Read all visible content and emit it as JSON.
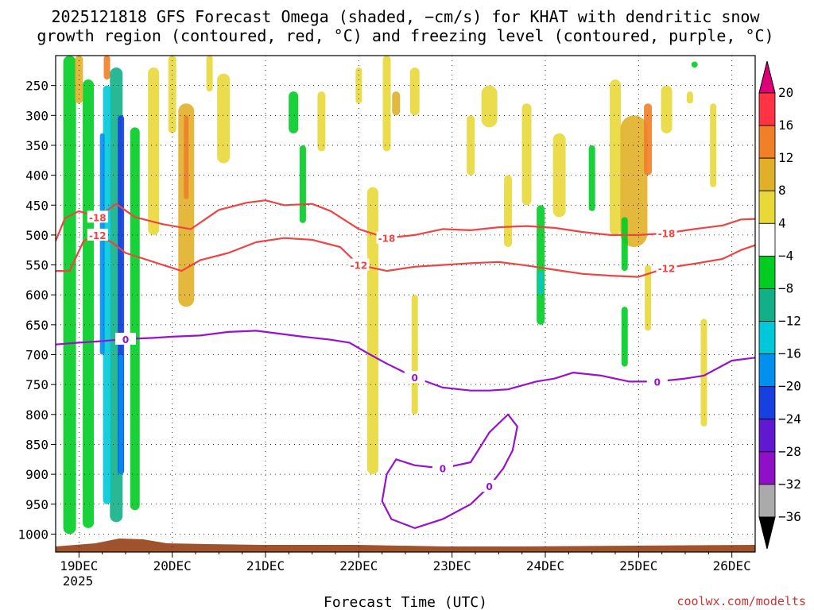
{
  "chart_data": {
    "type": "heatmap",
    "title_lines": [
      "2025121818 GFS Forecast Omega (shaded, −cm/s) for KHAT with dendritic snow",
      "growth region (contoured, red, °C) and freezing level (contoured, purple, °C)"
    ],
    "xlabel": "Forecast Time (UTC)",
    "ylabel": "",
    "credit": "coolwx.com/modelts",
    "x_ticks": [
      "19DEC",
      "20DEC",
      "21DEC",
      "22DEC",
      "23DEC",
      "24DEC",
      "25DEC",
      "26DEC"
    ],
    "x_year": "2025",
    "y_ticks": [
      "250",
      "300",
      "350",
      "400",
      "450",
      "500",
      "550",
      "600",
      "650",
      "700",
      "750",
      "800",
      "850",
      "900",
      "950",
      "1000"
    ],
    "y_range_hpa": [
      200,
      1030
    ],
    "x_range_days": [
      18.75,
      26.25
    ],
    "colorbar": {
      "labels": [
        "20",
        "16",
        "12",
        "8",
        "4",
        "−4",
        "−8",
        "−12",
        "−16",
        "−20",
        "−24",
        "−28",
        "−32",
        "−36"
      ],
      "colors": [
        "#ff3344",
        "#f08028",
        "#e0b028",
        "#e8d838",
        "#ffffff",
        "#00cc22",
        "#11b088",
        "#00c8d8",
        "#0090f0",
        "#1840e0",
        "#6018d0",
        "#9010c8",
        "#aaaaaa"
      ],
      "top_color": "#dd0077",
      "bottom_color": "#000000"
    },
    "series": [
      {
        "name": "-18 °C",
        "color": "#ee4444",
        "label": "-18",
        "x": [
          18.75,
          18.85,
          19.0,
          19.2,
          19.4,
          19.6,
          19.9,
          20.2,
          20.5,
          20.8,
          21.0,
          21.2,
          21.5,
          21.7,
          22.0,
          22.3,
          22.6,
          22.9,
          23.2,
          23.5,
          23.8,
          24.1,
          24.4,
          24.7,
          25.0,
          25.3,
          25.6,
          25.9,
          26.1,
          26.25
        ],
        "y": [
          510,
          472,
          460,
          470,
          448,
          470,
          482,
          490,
          458,
          446,
          442,
          450,
          448,
          460,
          490,
          505,
          500,
          490,
          492,
          487,
          485,
          488,
          495,
          500,
          500,
          497,
          490,
          484,
          474,
          473
        ]
      },
      {
        "name": "-12 °C",
        "color": "#ee4444",
        "label": "-12",
        "x": [
          18.75,
          18.9,
          19.05,
          19.2,
          19.35,
          19.5,
          19.7,
          19.9,
          20.1,
          20.3,
          20.6,
          20.9,
          21.2,
          21.5,
          21.8,
          22.0,
          22.3,
          22.6,
          22.9,
          23.2,
          23.5,
          23.8,
          24.1,
          24.4,
          24.7,
          25.0,
          25.3,
          25.6,
          25.9,
          26.1,
          26.25
        ],
        "y": [
          560,
          560,
          510,
          500,
          512,
          530,
          540,
          550,
          560,
          542,
          530,
          512,
          505,
          508,
          520,
          550,
          560,
          553,
          550,
          547,
          545,
          551,
          558,
          565,
          568,
          570,
          555,
          548,
          540,
          525,
          517
        ]
      },
      {
        "name": "0 °C freezing level",
        "color": "#9911cc",
        "label": "0",
        "x": [
          18.75,
          19.0,
          19.2,
          19.5,
          19.8,
          20.0,
          20.3,
          20.6,
          20.9,
          21.1,
          21.4,
          21.7,
          21.9,
          22.1,
          22.3,
          22.6,
          22.9,
          23.2,
          23.4,
          23.6,
          23.9,
          24.1,
          24.3,
          24.6,
          24.9,
          25.2,
          25.5,
          25.7,
          26.0,
          26.25
        ],
        "y": [
          683,
          680,
          678,
          674,
          672,
          670,
          668,
          662,
          660,
          664,
          670,
          675,
          680,
          698,
          715,
          738,
          755,
          760,
          760,
          758,
          745,
          740,
          730,
          735,
          745,
          745,
          740,
          735,
          710,
          705
        ]
      },
      {
        "name": "0 °C closed contour",
        "color": "#9911cc",
        "label": "0",
        "x": [
          22.3,
          22.25,
          22.35,
          22.6,
          22.9,
          23.2,
          23.4,
          23.55,
          23.65,
          23.7,
          23.6,
          23.4,
          23.2,
          22.9,
          22.6,
          22.4,
          22.3
        ],
        "y": [
          900,
          945,
          975,
          990,
          975,
          950,
          920,
          890,
          860,
          820,
          800,
          830,
          880,
          890,
          885,
          875,
          900
        ]
      }
    ]
  }
}
